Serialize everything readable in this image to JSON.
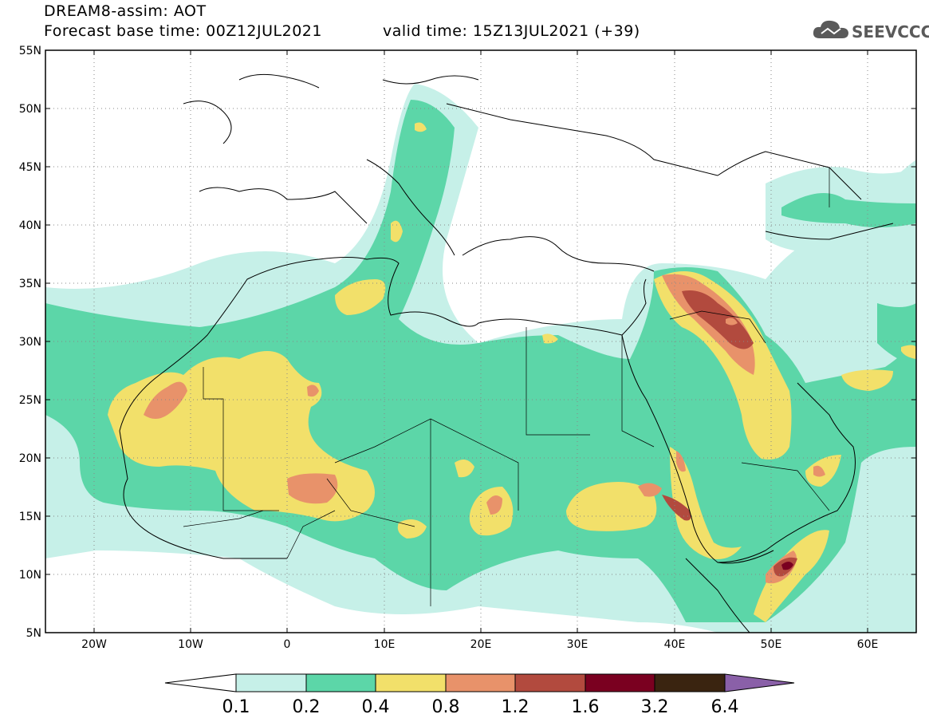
{
  "header": {
    "line1": "DREAM8-assim: AOT",
    "line2": "Forecast base time: 00Z12JUL2021",
    "valid": "valid time: 15Z13JUL2021 (+39)",
    "logo_text": "SEEVCCC",
    "logo_icon": "cloud-icon"
  },
  "axes": {
    "lat_labels": [
      "55N",
      "50N",
      "45N",
      "40N",
      "35N",
      "30N",
      "25N",
      "20N",
      "15N",
      "10N",
      "5N"
    ],
    "lon_labels": [
      "20W",
      "10W",
      "0",
      "10E",
      "20E",
      "30E",
      "40E",
      "50E",
      "60E"
    ]
  },
  "colorbar": {
    "labels": [
      "0.1",
      "0.2",
      "0.4",
      "0.8",
      "1.2",
      "1.6",
      "3.2",
      "6.4"
    ],
    "colors": [
      "#c6f0e8",
      "#5cd6a8",
      "#f2e06a",
      "#e8926a",
      "#b24a3e",
      "#7a0020",
      "#3a2410",
      "#8a60a8"
    ]
  },
  "chart_data": {
    "type": "heatmap",
    "variable": "AOT",
    "lon_range": [
      -25,
      65
    ],
    "lat_range": [
      5,
      55
    ],
    "grid": true
  }
}
